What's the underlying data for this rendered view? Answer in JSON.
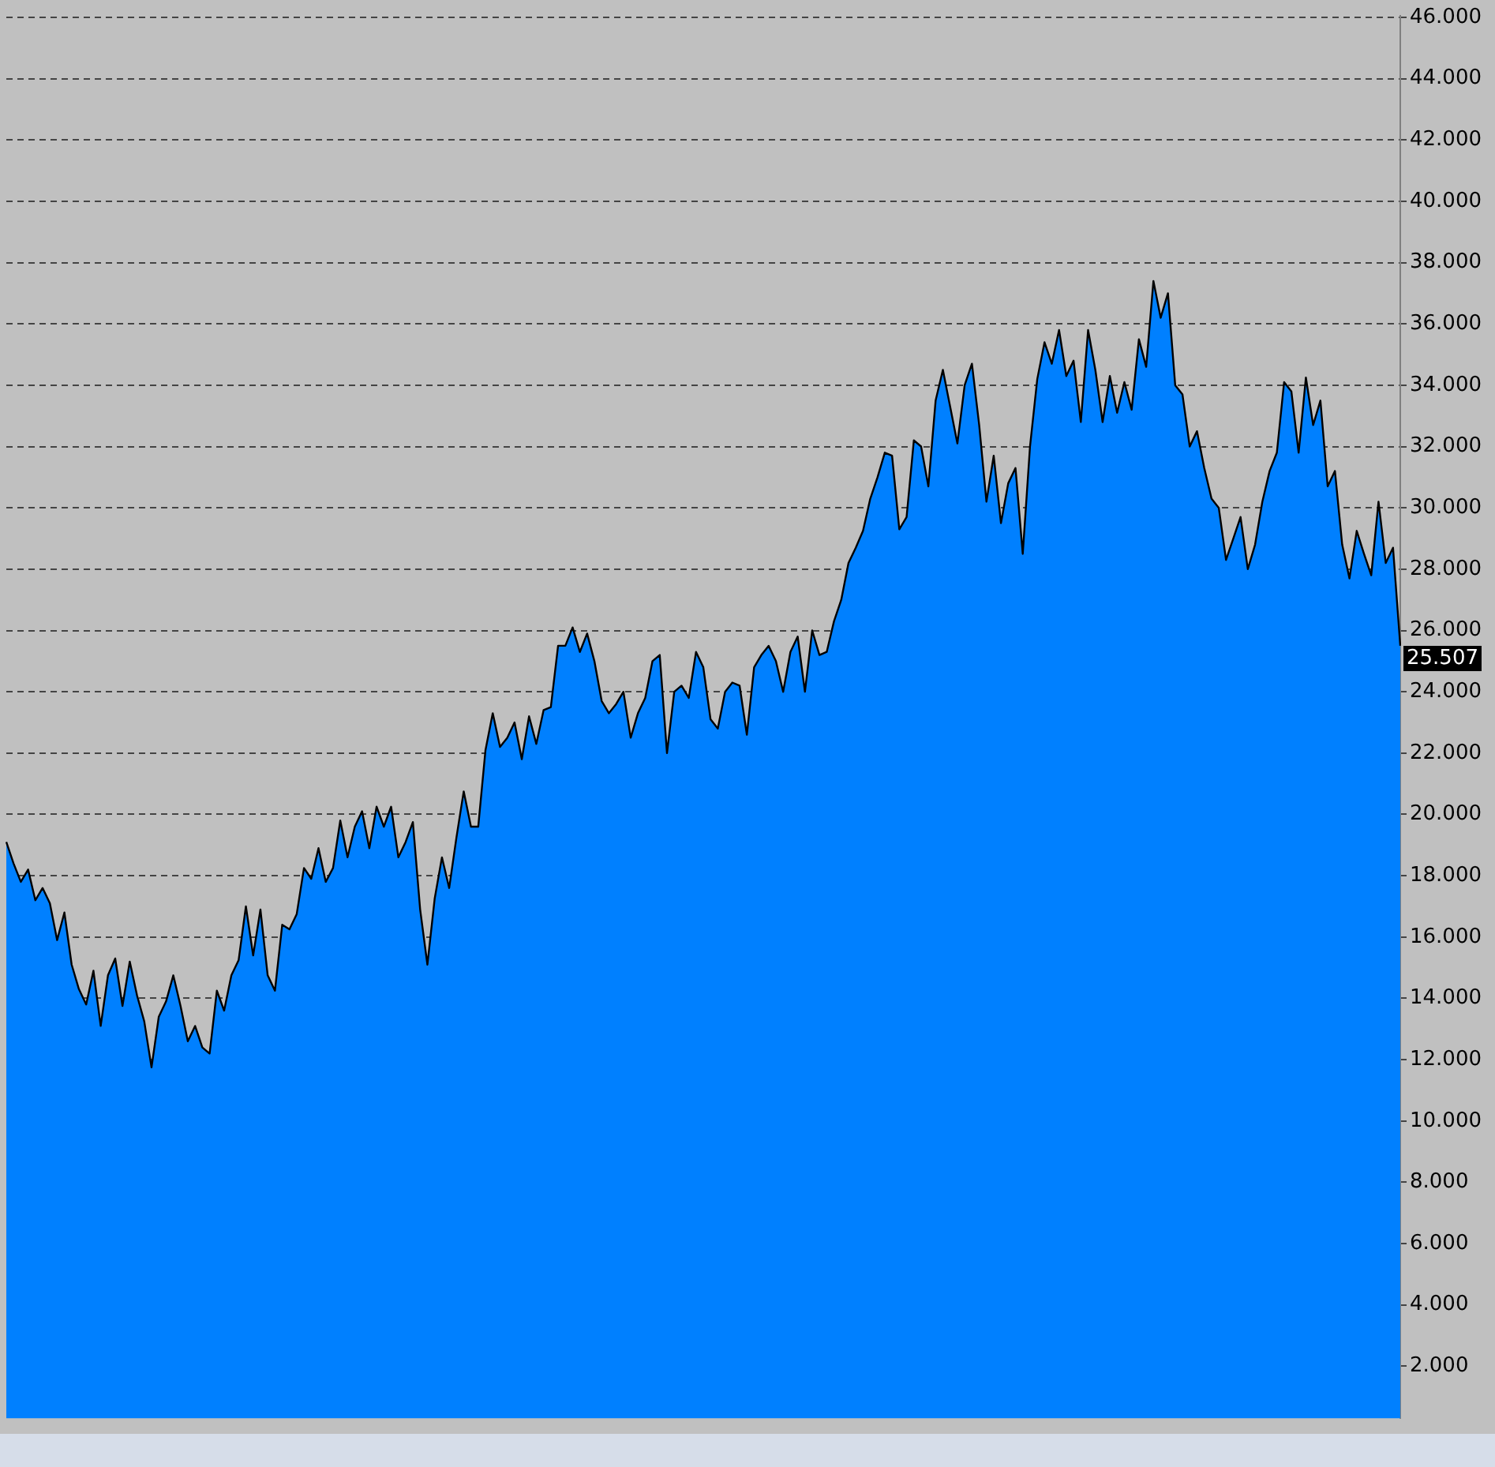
{
  "chart_data": {
    "type": "area",
    "categories": [
      null,
      null,
      null,
      null,
      null,
      null,
      null,
      null,
      null,
      null,
      null,
      null,
      null,
      null,
      null,
      null,
      null,
      null,
      null,
      null,
      null,
      null,
      null,
      null,
      null,
      null,
      null,
      null,
      null,
      null,
      null,
      null,
      null,
      null,
      null,
      null,
      null,
      null,
      null,
      null,
      null,
      null,
      null,
      null,
      null,
      null,
      null,
      null,
      null,
      null,
      null,
      null,
      null,
      null,
      null,
      null,
      null,
      null,
      null,
      null,
      null,
      null,
      null,
      null,
      null,
      null,
      null,
      null,
      null,
      null,
      null,
      null,
      null,
      null,
      null,
      null,
      null,
      null,
      null,
      null,
      null,
      null,
      null,
      null,
      null,
      null,
      null,
      null,
      null,
      null,
      null,
      null,
      null,
      null,
      null,
      null,
      null,
      null,
      null,
      null,
      null,
      null,
      null,
      null,
      null,
      null,
      null,
      null,
      null,
      null,
      null,
      null,
      null,
      null,
      null,
      null,
      null,
      null,
      null,
      null,
      null,
      null,
      null,
      null,
      null,
      null,
      null,
      null,
      null,
      null,
      null,
      null,
      null,
      null,
      null,
      null,
      null,
      null,
      null,
      null,
      null,
      null,
      null,
      null,
      null,
      null,
      null,
      null,
      null,
      null,
      null,
      null,
      null,
      null,
      null,
      null,
      null,
      null,
      null,
      null,
      null,
      null,
      null,
      null,
      null,
      null,
      null,
      null,
      null,
      null,
      null,
      null,
      null,
      null,
      null,
      null,
      null,
      null,
      null,
      null,
      null,
      null,
      null,
      null,
      null,
      null,
      null,
      null,
      null,
      null,
      null,
      null,
      null
    ],
    "series": [
      {
        "color": "#0080ff",
        "values": [
          19.1,
          18.4,
          17.8,
          18.2,
          17.2,
          17.6,
          17.1,
          15.9,
          16.8,
          15.1,
          14.3,
          13.8,
          14.9,
          13.1,
          14.75,
          15.3,
          13.75,
          15.2,
          14.1,
          13.25,
          11.75,
          13.4,
          13.9,
          14.75,
          13.75,
          12.6,
          13.1,
          12.4,
          12.2,
          14.25,
          13.6,
          14.75,
          15.25,
          17.0,
          15.4,
          16.9,
          14.75,
          14.25,
          16.4,
          16.25,
          16.75,
          18.25,
          17.9,
          18.9,
          17.8,
          18.25,
          19.8,
          18.6,
          19.6,
          20.1,
          18.9,
          20.25,
          19.6,
          20.25,
          18.6,
          19.1,
          19.75,
          16.9,
          15.1,
          17.25,
          18.6,
          17.6,
          19.25,
          20.75,
          19.6,
          19.6,
          22.1,
          23.3,
          22.2,
          22.5,
          23.0,
          21.8,
          23.2,
          22.3,
          23.4,
          23.5,
          25.5,
          25.5,
          26.1,
          25.3,
          25.9,
          25.0,
          23.7,
          23.3,
          23.6,
          24.0,
          22.5,
          23.3,
          23.8,
          25.0,
          25.2,
          22.0,
          24.0,
          24.2,
          23.8,
          25.3,
          24.8,
          23.1,
          22.8,
          24.0,
          24.3,
          24.2,
          22.6,
          24.8,
          25.2,
          25.5,
          25.0,
          24.0,
          25.3,
          25.8,
          24.0,
          26.0,
          25.2,
          25.3,
          26.3,
          27.0,
          28.2,
          28.7,
          29.25,
          30.3,
          31.0,
          31.8,
          31.7,
          29.3,
          29.7,
          32.2,
          32.0,
          30.7,
          33.5,
          34.5,
          33.3,
          32.1,
          34.0,
          34.7,
          32.7,
          30.2,
          31.7,
          29.5,
          30.8,
          31.3,
          28.5,
          32.0,
          34.2,
          35.4,
          34.7,
          35.8,
          34.3,
          34.8,
          32.8,
          35.8,
          34.5,
          32.8,
          34.3,
          33.1,
          34.1,
          33.2,
          35.5,
          34.6,
          37.4,
          36.2,
          37.0,
          34.0,
          33.7,
          32.0,
          32.5,
          31.3,
          30.3,
          30.0,
          28.3,
          29.0,
          29.7,
          28.0,
          28.8,
          30.2,
          31.2,
          31.8,
          34.1,
          33.8,
          31.8,
          34.25,
          32.7,
          33.5,
          30.7,
          31.2,
          28.8,
          27.7,
          29.25,
          28.5,
          27.8,
          30.2,
          28.2,
          28.7,
          25.5
        ]
      }
    ],
    "ylim": [
      0.3,
      46.05
    ],
    "yticks": [
      {
        "value": 2,
        "label": "2.000"
      },
      {
        "value": 4,
        "label": "4.000"
      },
      {
        "value": 6,
        "label": "6.000"
      },
      {
        "value": 8,
        "label": "8.000"
      },
      {
        "value": 10,
        "label": "10.000"
      },
      {
        "value": 12,
        "label": "12.000"
      },
      {
        "value": 14,
        "label": "14.000"
      },
      {
        "value": 16,
        "label": "16.000"
      },
      {
        "value": 18,
        "label": "18.000"
      },
      {
        "value": 20,
        "label": "20.000"
      },
      {
        "value": 22,
        "label": "22.000"
      },
      {
        "value": 24,
        "label": "24.000"
      },
      {
        "value": 26,
        "label": "26.000"
      },
      {
        "value": 28,
        "label": "28.000"
      },
      {
        "value": 30,
        "label": "30.000"
      },
      {
        "value": 32,
        "label": "32.000"
      },
      {
        "value": 34,
        "label": "34.000"
      },
      {
        "value": 36,
        "label": "36.000"
      },
      {
        "value": 38,
        "label": "38.000"
      },
      {
        "value": 40,
        "label": "40.000"
      },
      {
        "value": 42,
        "label": "42.000"
      },
      {
        "value": 44,
        "label": "44.000"
      },
      {
        "value": 46,
        "label": "46.000"
      }
    ],
    "grid": "y",
    "legend": false,
    "tick_labels": "y",
    "annotations": [
      "25.507"
    ]
  }
}
